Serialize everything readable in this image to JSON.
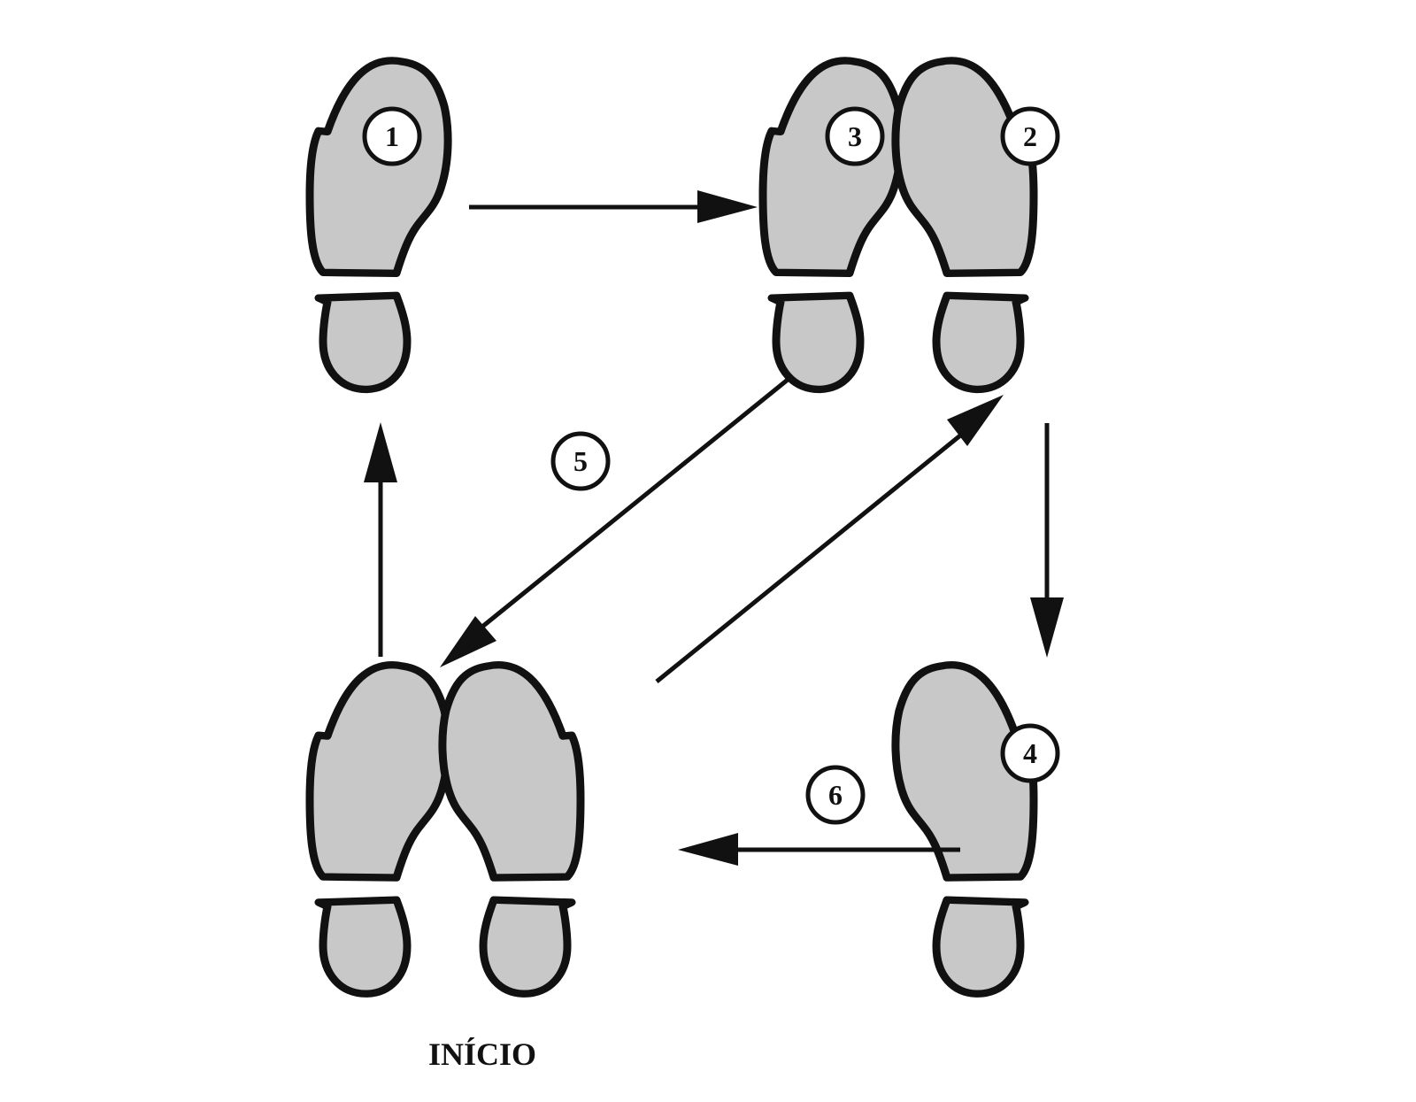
{
  "diagram": {
    "start_label": "INÍCIO",
    "step_numbers": {
      "step_1": "1",
      "step_2": "2",
      "step_3": "3",
      "step_4": "4",
      "step_5": "5",
      "step_6": "6"
    },
    "colors": {
      "footprint_fill": "#c8c8c8",
      "stroke": "#111111",
      "background": "#ffffff"
    }
  }
}
